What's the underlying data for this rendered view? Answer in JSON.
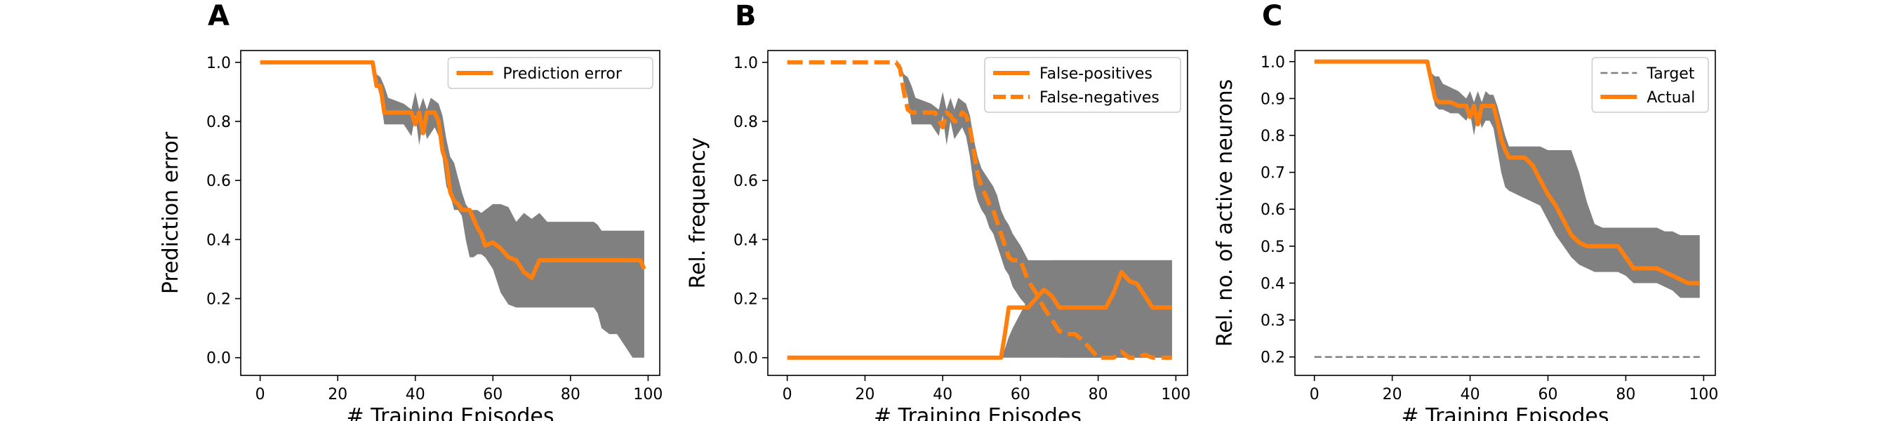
{
  "colors": {
    "line": "#ff7f0e",
    "band": "#808080",
    "target": "#808080",
    "axis": "#000000"
  },
  "chart_data": [
    {
      "panel": "A",
      "type": "line",
      "xlabel": "# Training Episodes",
      "ylabel": "Prediction error",
      "xlim": [
        -5,
        103
      ],
      "ylim": [
        -0.06,
        1.04
      ],
      "xticks": [
        0,
        20,
        40,
        60,
        80,
        100
      ],
      "yticks": [
        0.0,
        0.2,
        0.4,
        0.6,
        0.8,
        1.0
      ],
      "yticks_labels": [
        "0.0",
        "0.2",
        "0.4",
        "0.6",
        "0.8",
        "1.0"
      ],
      "legend_position": "top-right",
      "bands": [
        {
          "x": [
            0,
            29,
            30,
            31,
            32,
            33,
            35,
            37,
            39,
            40,
            41,
            42,
            43,
            44,
            45,
            46,
            47,
            48,
            49,
            50,
            51,
            52,
            53,
            54,
            55,
            56,
            57,
            58,
            60,
            62,
            64,
            66,
            68,
            70,
            72,
            74,
            76,
            78,
            80,
            82,
            84,
            86,
            87,
            88,
            90,
            92,
            94,
            96,
            98,
            99
          ],
          "lower": [
            1.0,
            1.0,
            0.93,
            0.88,
            0.79,
            0.79,
            0.79,
            0.79,
            0.75,
            0.82,
            0.72,
            0.8,
            0.74,
            0.76,
            0.78,
            0.75,
            0.68,
            0.58,
            0.55,
            0.5,
            0.5,
            0.48,
            0.4,
            0.34,
            0.34,
            0.35,
            0.35,
            0.34,
            0.3,
            0.22,
            0.18,
            0.17,
            0.17,
            0.17,
            0.17,
            0.17,
            0.17,
            0.17,
            0.17,
            0.17,
            0.17,
            0.17,
            0.15,
            0.1,
            0.08,
            0.08,
            0.04,
            0.0,
            0.0,
            0.0
          ],
          "upper": [
            1.0,
            1.0,
            0.96,
            0.95,
            0.92,
            0.88,
            0.87,
            0.86,
            0.84,
            0.9,
            0.84,
            0.88,
            0.84,
            0.88,
            0.87,
            0.86,
            0.82,
            0.74,
            0.68,
            0.66,
            0.61,
            0.56,
            0.52,
            0.5,
            0.5,
            0.5,
            0.49,
            0.5,
            0.52,
            0.52,
            0.51,
            0.46,
            0.49,
            0.47,
            0.49,
            0.46,
            0.46,
            0.46,
            0.46,
            0.46,
            0.46,
            0.46,
            0.45,
            0.43,
            0.43,
            0.43,
            0.43,
            0.43,
            0.43,
            0.43
          ]
        }
      ],
      "series": [
        {
          "name": "Prediction error",
          "style": "solid",
          "x": [
            0,
            29,
            30,
            31,
            32,
            33,
            35,
            37,
            39,
            40,
            41,
            42,
            43,
            44,
            45,
            46,
            47,
            48,
            49,
            50,
            51,
            52,
            53,
            54,
            55,
            56,
            57,
            58,
            60,
            62,
            64,
            66,
            68,
            70,
            71,
            72,
            74,
            76,
            78,
            80,
            82,
            84,
            86,
            88,
            90,
            92,
            94,
            96,
            98,
            99
          ],
          "y": [
            1.0,
            1.0,
            0.92,
            0.92,
            0.83,
            0.83,
            0.83,
            0.83,
            0.83,
            0.79,
            0.83,
            0.76,
            0.83,
            0.83,
            0.83,
            0.8,
            0.7,
            0.66,
            0.56,
            0.53,
            0.52,
            0.5,
            0.5,
            0.5,
            0.47,
            0.44,
            0.42,
            0.38,
            0.39,
            0.37,
            0.34,
            0.33,
            0.29,
            0.27,
            0.3,
            0.33,
            0.33,
            0.33,
            0.33,
            0.33,
            0.33,
            0.33,
            0.33,
            0.33,
            0.33,
            0.33,
            0.33,
            0.33,
            0.33,
            0.3
          ]
        }
      ]
    },
    {
      "panel": "B",
      "type": "line",
      "xlabel": "# Training Episodes",
      "ylabel": "Rel. frequency",
      "xlim": [
        -5,
        103
      ],
      "ylim": [
        -0.06,
        1.04
      ],
      "xticks": [
        0,
        20,
        40,
        60,
        80,
        100
      ],
      "yticks": [
        0.0,
        0.2,
        0.4,
        0.6,
        0.8,
        1.0
      ],
      "yticks_labels": [
        "0.0",
        "0.2",
        "0.4",
        "0.6",
        "0.8",
        "1.0"
      ],
      "legend_position": "top-right",
      "bands": [
        {
          "x": [
            29,
            30,
            31,
            32,
            33,
            35,
            37,
            39,
            40,
            41,
            42,
            43,
            44,
            45,
            46,
            47,
            48,
            49,
            50,
            51,
            52,
            53,
            54,
            55,
            56,
            57,
            58,
            60,
            62,
            64,
            66,
            68,
            70,
            72,
            74,
            76,
            78,
            80,
            82,
            84,
            86,
            88,
            90,
            92,
            94,
            96,
            98,
            99
          ],
          "lower": [
            1.0,
            0.93,
            0.88,
            0.79,
            0.79,
            0.79,
            0.79,
            0.75,
            0.82,
            0.72,
            0.8,
            0.74,
            0.76,
            0.78,
            0.75,
            0.68,
            0.58,
            0.53,
            0.5,
            0.48,
            0.44,
            0.42,
            0.38,
            0.34,
            0.3,
            0.28,
            0.24,
            0.2,
            0.17,
            0.14,
            0.1,
            0.06,
            0.0,
            0.0,
            0.0,
            0.0,
            0.0,
            0.0,
            0.0,
            0.0,
            0.0,
            0.0,
            0.0,
            0.0,
            0.0,
            0.0,
            0.0,
            0.0
          ],
          "upper": [
            1.0,
            0.96,
            0.95,
            0.92,
            0.88,
            0.87,
            0.86,
            0.84,
            0.9,
            0.84,
            0.88,
            0.84,
            0.88,
            0.87,
            0.86,
            0.82,
            0.74,
            0.68,
            0.64,
            0.62,
            0.6,
            0.58,
            0.55,
            0.5,
            0.47,
            0.45,
            0.42,
            0.38,
            0.33,
            0.33,
            0.33,
            0.33,
            0.33,
            0.33,
            0.33,
            0.33,
            0.33,
            0.33,
            0.33,
            0.33,
            0.33,
            0.33,
            0.33,
            0.33,
            0.33,
            0.33,
            0.33,
            0.33
          ]
        },
        {
          "x": [
            55,
            56,
            57,
            58,
            60,
            62,
            64,
            66,
            68,
            70,
            72,
            74,
            76,
            78,
            80,
            82,
            84,
            86,
            88,
            90,
            92,
            94,
            96,
            98,
            99
          ],
          "lower": [
            0.0,
            0.0,
            0.0,
            0.0,
            0.0,
            0.0,
            0.0,
            0.0,
            0.0,
            0.0,
            0.0,
            0.0,
            0.0,
            0.0,
            0.0,
            0.0,
            0.0,
            0.0,
            0.0,
            0.0,
            0.0,
            0.0,
            0.0,
            0.0,
            0.0
          ],
          "upper": [
            0.0,
            0.03,
            0.07,
            0.1,
            0.15,
            0.2,
            0.25,
            0.3,
            0.33,
            0.33,
            0.33,
            0.33,
            0.33,
            0.33,
            0.33,
            0.33,
            0.33,
            0.33,
            0.33,
            0.33,
            0.33,
            0.33,
            0.33,
            0.33,
            0.33
          ]
        }
      ],
      "series": [
        {
          "name": "False-positives",
          "style": "solid",
          "x": [
            0,
            55,
            56,
            57,
            58,
            60,
            62,
            64,
            66,
            68,
            70,
            72,
            74,
            76,
            78,
            80,
            82,
            84,
            86,
            88,
            90,
            92,
            94,
            96,
            98,
            99
          ],
          "y": [
            0.0,
            0.0,
            0.08,
            0.17,
            0.17,
            0.17,
            0.17,
            0.2,
            0.23,
            0.21,
            0.17,
            0.17,
            0.17,
            0.17,
            0.17,
            0.17,
            0.17,
            0.22,
            0.29,
            0.26,
            0.25,
            0.21,
            0.17,
            0.17,
            0.17,
            0.17
          ]
        },
        {
          "name": "False-negatives",
          "style": "dashed",
          "x": [
            0,
            28,
            29,
            30,
            31,
            32,
            35,
            38,
            40,
            41,
            42,
            43,
            44,
            45,
            46,
            47,
            48,
            49,
            50,
            51,
            52,
            53,
            54,
            55,
            56,
            57,
            58,
            60,
            62,
            64,
            66,
            68,
            70,
            72,
            74,
            76,
            78,
            80,
            82,
            84,
            86,
            88,
            90,
            92,
            94,
            96,
            98,
            99
          ],
          "y": [
            1.0,
            1.0,
            0.98,
            0.9,
            0.84,
            0.83,
            0.83,
            0.83,
            0.78,
            0.83,
            0.82,
            0.8,
            0.8,
            0.83,
            0.82,
            0.78,
            0.7,
            0.62,
            0.58,
            0.55,
            0.52,
            0.5,
            0.46,
            0.42,
            0.38,
            0.34,
            0.33,
            0.33,
            0.26,
            0.22,
            0.17,
            0.13,
            0.09,
            0.08,
            0.08,
            0.06,
            0.03,
            0.0,
            0.0,
            0.0,
            0.02,
            0.0,
            0.0,
            0.01,
            0.0,
            0.0,
            0.0,
            0.0
          ]
        }
      ]
    },
    {
      "panel": "C",
      "type": "line",
      "xlabel": "# Training Episodes",
      "ylabel": "Rel. no. of active neurons",
      "xlim": [
        -5,
        103
      ],
      "ylim": [
        0.15,
        1.03
      ],
      "xticks": [
        0,
        20,
        40,
        60,
        80,
        100
      ],
      "yticks": [
        0.2,
        0.3,
        0.4,
        0.5,
        0.6,
        0.7,
        0.8,
        0.9,
        1.0
      ],
      "yticks_labels": [
        "0.2",
        "0.3",
        "0.4",
        "0.5",
        "0.6",
        "0.7",
        "0.8",
        "0.9",
        "1.0"
      ],
      "legend_position": "top-right",
      "bands": [
        {
          "x": [
            0,
            29,
            30,
            31,
            32,
            33,
            35,
            37,
            39,
            40,
            41,
            42,
            43,
            44,
            45,
            46,
            47,
            48,
            49,
            50,
            52,
            54,
            56,
            58,
            60,
            62,
            64,
            66,
            68,
            70,
            72,
            74,
            76,
            78,
            80,
            82,
            84,
            86,
            88,
            90,
            92,
            94,
            96,
            98,
            99
          ],
          "lower": [
            1.0,
            1.0,
            0.93,
            0.88,
            0.87,
            0.87,
            0.86,
            0.86,
            0.84,
            0.86,
            0.8,
            0.86,
            0.82,
            0.84,
            0.84,
            0.82,
            0.76,
            0.7,
            0.66,
            0.65,
            0.64,
            0.63,
            0.62,
            0.61,
            0.57,
            0.53,
            0.5,
            0.47,
            0.45,
            0.44,
            0.43,
            0.43,
            0.43,
            0.43,
            0.42,
            0.4,
            0.4,
            0.4,
            0.4,
            0.39,
            0.38,
            0.36,
            0.36,
            0.36,
            0.36
          ],
          "upper": [
            1.0,
            1.0,
            0.97,
            0.96,
            0.96,
            0.94,
            0.93,
            0.92,
            0.9,
            0.92,
            0.89,
            0.92,
            0.89,
            0.92,
            0.91,
            0.91,
            0.88,
            0.84,
            0.8,
            0.77,
            0.77,
            0.77,
            0.77,
            0.77,
            0.76,
            0.76,
            0.76,
            0.76,
            0.7,
            0.62,
            0.56,
            0.55,
            0.55,
            0.55,
            0.55,
            0.55,
            0.55,
            0.55,
            0.55,
            0.54,
            0.54,
            0.53,
            0.53,
            0.53,
            0.53
          ]
        }
      ],
      "series": [
        {
          "name": "Target",
          "style": "thin-dashed",
          "x": [
            0,
            99
          ],
          "y": [
            0.2,
            0.2
          ]
        },
        {
          "name": "Actual",
          "style": "solid",
          "x": [
            0,
            29,
            30,
            31,
            32,
            33,
            35,
            37,
            39,
            40,
            41,
            42,
            43,
            44,
            45,
            46,
            47,
            48,
            49,
            50,
            52,
            54,
            56,
            58,
            60,
            62,
            64,
            66,
            68,
            70,
            72,
            74,
            76,
            78,
            80,
            82,
            84,
            86,
            88,
            90,
            92,
            94,
            96,
            98,
            99
          ],
          "y": [
            1.0,
            1.0,
            0.95,
            0.9,
            0.89,
            0.89,
            0.89,
            0.88,
            0.88,
            0.85,
            0.88,
            0.83,
            0.88,
            0.88,
            0.88,
            0.88,
            0.84,
            0.79,
            0.76,
            0.74,
            0.74,
            0.74,
            0.72,
            0.68,
            0.64,
            0.61,
            0.57,
            0.53,
            0.51,
            0.5,
            0.5,
            0.5,
            0.5,
            0.5,
            0.47,
            0.44,
            0.44,
            0.44,
            0.44,
            0.43,
            0.42,
            0.41,
            0.4,
            0.4,
            0.4
          ]
        }
      ]
    }
  ]
}
